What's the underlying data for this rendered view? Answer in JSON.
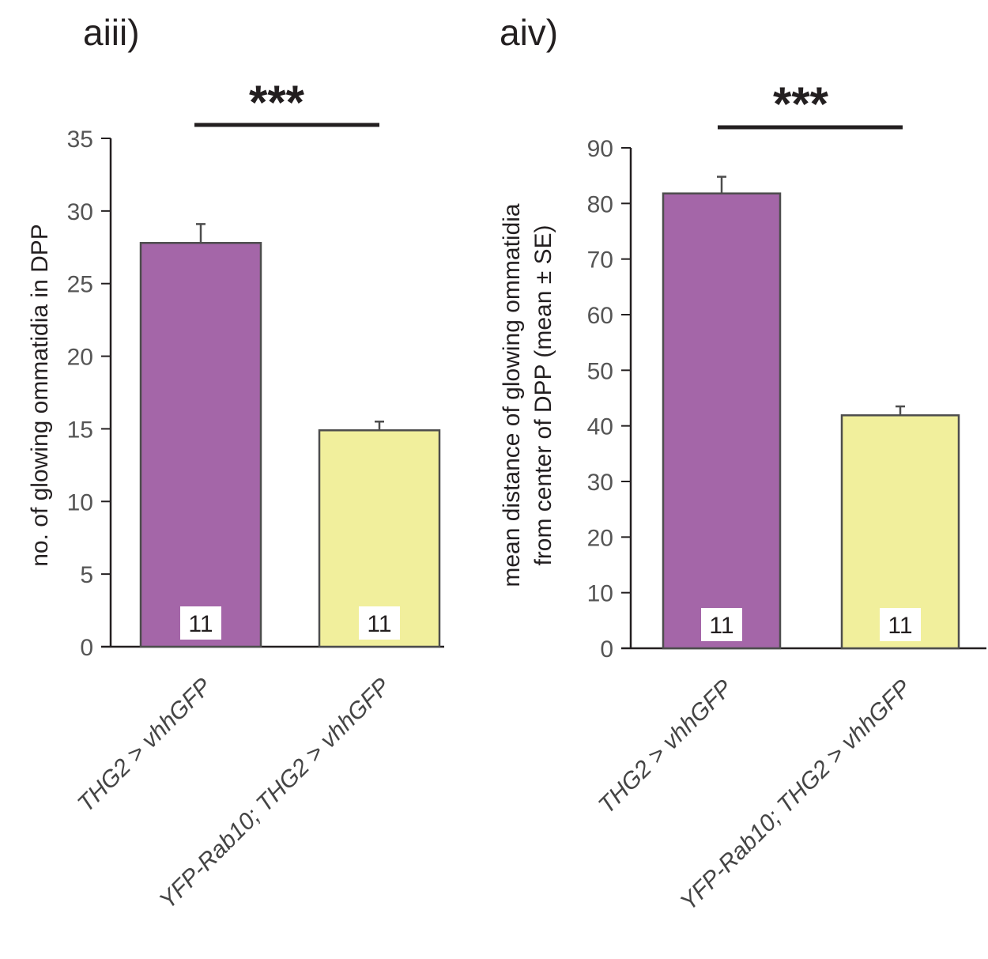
{
  "chart_data": [
    {
      "type": "bar",
      "panel_label": "aiii)",
      "categories": [
        "THG2 > vhhGFP",
        "YFP-Rab10; THG2 > vhhGFP"
      ],
      "values": [
        27.8,
        14.9
      ],
      "errors": [
        1.3,
        0.6
      ],
      "n_labels": [
        "11",
        "11"
      ],
      "ylabel_lines": [
        "no. of glowing ommatidia in DPP"
      ],
      "ylim": [
        0,
        35
      ],
      "yticks": [
        0,
        5,
        10,
        15,
        20,
        25,
        30,
        35
      ],
      "significance": "***",
      "colors": [
        "#a466a8",
        "#f1ef9c"
      ],
      "grid": false
    },
    {
      "type": "bar",
      "panel_label": "aiv)",
      "categories": [
        "THG2 > vhhGFP",
        "YFP-Rab10; THG2 > vhhGFP"
      ],
      "values": [
        81.8,
        41.9
      ],
      "errors": [
        3.0,
        1.6
      ],
      "n_labels": [
        "11",
        "11"
      ],
      "ylabel_lines": [
        "mean distance of glowing ommatidia",
        "from center of DPP (mean ± SE)"
      ],
      "ylim": [
        0,
        90
      ],
      "yticks": [
        0,
        10,
        20,
        30,
        40,
        50,
        60,
        70,
        80,
        90
      ],
      "significance": "***",
      "colors": [
        "#a466a8",
        "#f1ef9c"
      ],
      "grid": false
    }
  ]
}
